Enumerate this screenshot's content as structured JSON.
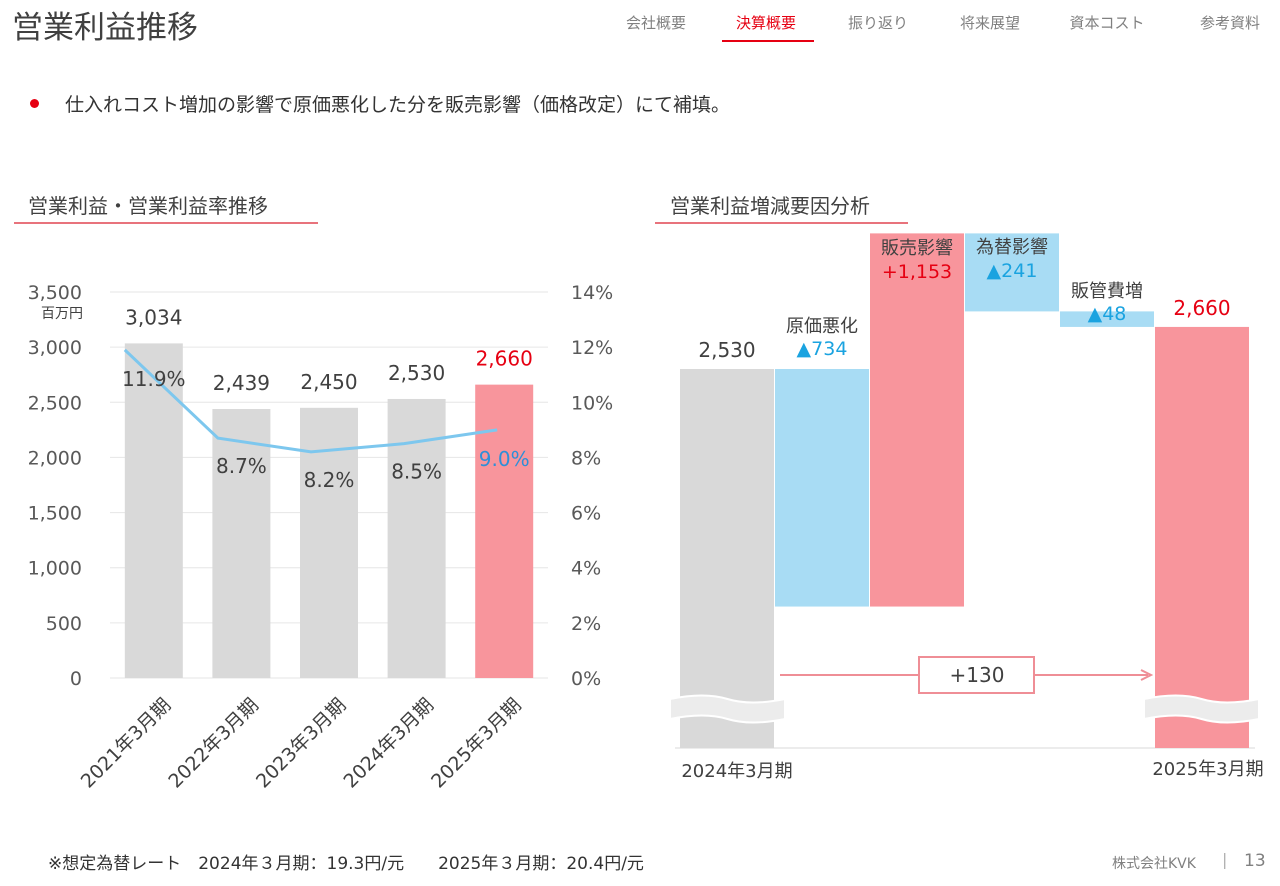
{
  "page": {
    "title": "営業利益推移"
  },
  "nav": {
    "tabs": [
      {
        "label": "会社概要",
        "active": false
      },
      {
        "label": "決算概要",
        "active": true
      },
      {
        "label": "振り返り",
        "active": false
      },
      {
        "label": "将来展望",
        "active": false
      },
      {
        "label": "資本コスト",
        "active": false
      },
      {
        "label": "参考資料",
        "active": false
      }
    ]
  },
  "bullet": "仕入れコスト増加の影響で原価悪化した分を販売影響（価格改定）にて補填。",
  "left_section": {
    "title": "営業利益・営業利益率推移"
  },
  "right_section": {
    "title": "営業利益増減要因分析"
  },
  "footer": {
    "note": "※想定為替レート　2024年３月期：19.3円/元　　2025年３月期：20.4円/元",
    "company": "株式会社KVK",
    "separator": "|",
    "page_number": "13"
  },
  "colors": {
    "accent_red": "#e60012",
    "bar_gray": "#d9d9d9",
    "bar_pink": "#f8959c",
    "line_blue": "#7dc7ee",
    "bar_light_blue": "#a8dcf4",
    "negative_blue": "#1aa3e0",
    "highlight_pct": "#2e8fd8",
    "bracket_pink": "#ef8e96",
    "break_fill": "#ececec"
  },
  "chart_data": [
    {
      "type": "bar",
      "title": "営業利益・営業利益率推移",
      "unit_label": "百万円",
      "categories": [
        "2021年3月期",
        "2022年3月期",
        "2023年3月期",
        "2024年3月期",
        "2025年3月期"
      ],
      "series": [
        {
          "name": "営業利益",
          "type": "bar",
          "axis": "left",
          "values": [
            3034,
            2439,
            2450,
            2530,
            2660
          ],
          "labels": [
            "3,034",
            "2,439",
            "2,450",
            "2,530",
            "2,660"
          ]
        },
        {
          "name": "営業利益率",
          "type": "line",
          "axis": "right",
          "values": [
            11.9,
            8.7,
            8.2,
            8.5,
            9.0
          ],
          "labels": [
            "11.9%",
            "8.7%",
            "8.2%",
            "8.5%",
            "9.0%"
          ]
        }
      ],
      "ylim": [
        0,
        3500
      ],
      "yticks": [
        0,
        500,
        1000,
        1500,
        2000,
        2500,
        3000,
        3500
      ],
      "ytick_labels": [
        "0",
        "500",
        "1,000",
        "1,500",
        "2,000",
        "2,500",
        "3,000",
        "3,500"
      ],
      "y2lim": [
        0,
        14
      ],
      "y2ticks": [
        0,
        2,
        4,
        6,
        8,
        10,
        12,
        14
      ],
      "y2tick_labels": [
        "0%",
        "2%",
        "4%",
        "6%",
        "8%",
        "10%",
        "12%",
        "14%"
      ],
      "grid": true,
      "highlight_index": 4
    },
    {
      "type": "waterfall",
      "title": "営業利益増減要因分析",
      "start": {
        "label": "2024年3月期",
        "value": 2530,
        "value_label": "2,530"
      },
      "steps": [
        {
          "name": "原価悪化",
          "delta": -734,
          "value_label": "▲734"
        },
        {
          "name": "販売影響",
          "delta": 1153,
          "value_label": "+1,153"
        },
        {
          "name": "為替影響",
          "delta": -241,
          "value_label": "▲241"
        },
        {
          "name": "販管費増",
          "delta": -48,
          "value_label": "▲48"
        }
      ],
      "end": {
        "label": "2025年3月期",
        "value": 2660,
        "value_label": "2,660"
      },
      "difference_label": "+130",
      "axis_break": true
    }
  ]
}
